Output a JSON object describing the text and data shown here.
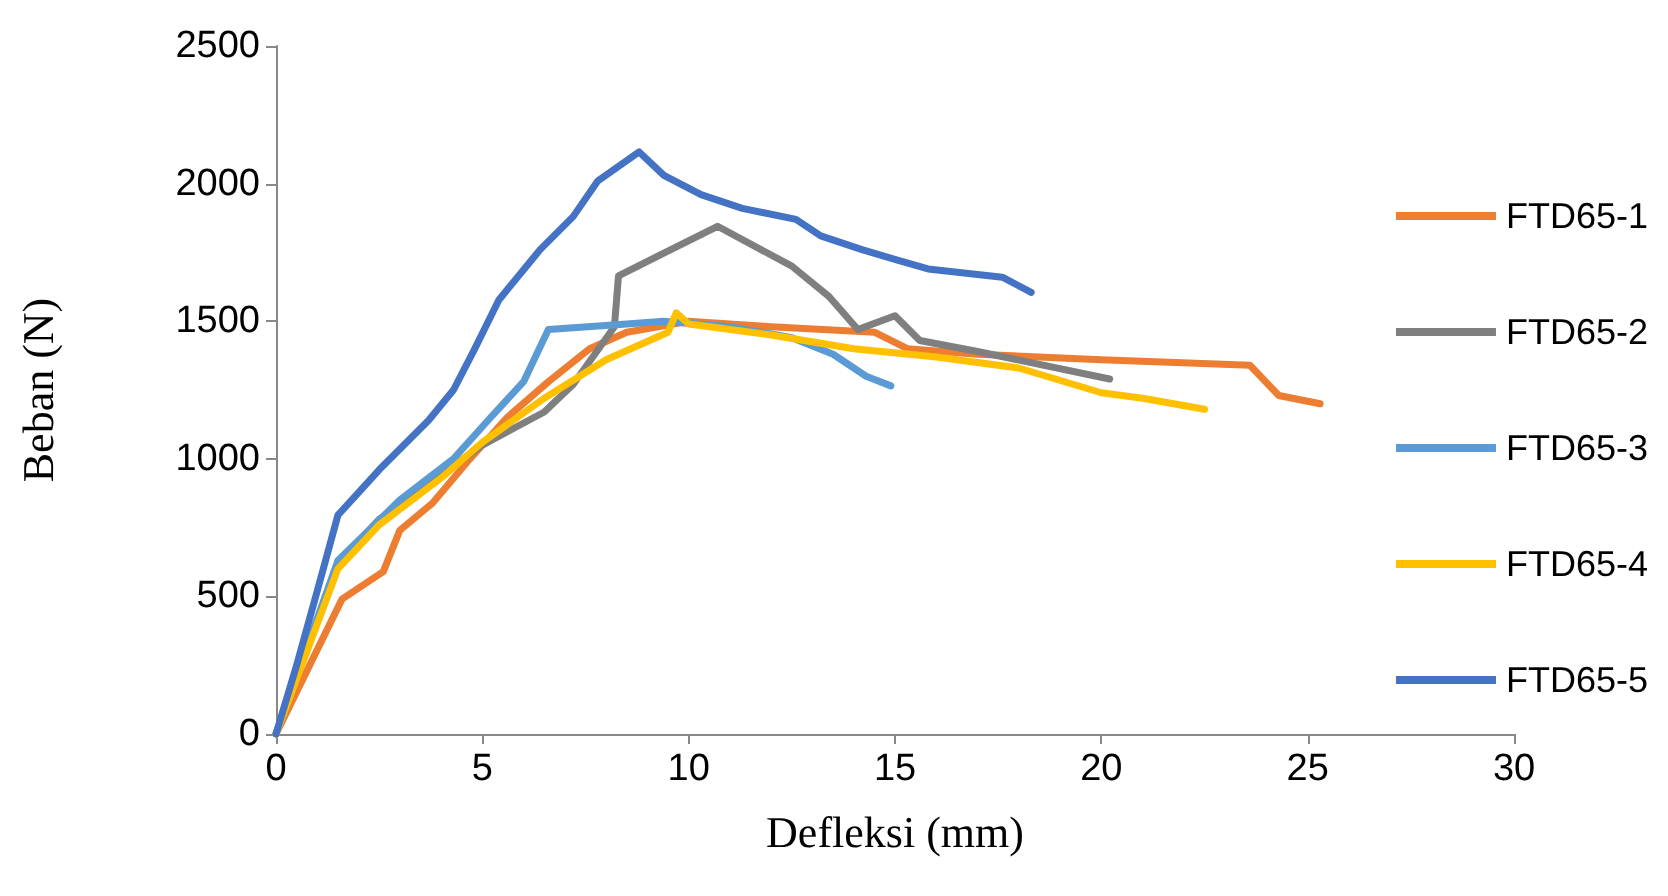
{
  "chart_data": {
    "type": "line",
    "xlabel": "Defleksi (mm)",
    "ylabel": "Beban (N)",
    "xlim": [
      0,
      30
    ],
    "xticks": [
      0,
      5,
      10,
      15,
      20,
      25,
      30
    ],
    "ylim": [
      0,
      2500
    ],
    "yticks": [
      0,
      500,
      1000,
      1500,
      2000,
      2500
    ],
    "grid": false,
    "legend": "right",
    "marker": "none",
    "line_style": "solid",
    "series": [
      {
        "name": "FTD65-1",
        "color": "#ed7d31",
        "x": [
          0,
          1.6,
          2.6,
          3,
          3.8,
          4.7,
          5.6,
          6.6,
          7.6,
          8.5,
          10,
          12,
          14.5,
          15.3,
          17,
          20,
          23.6,
          24.3,
          25.3
        ],
        "values": [
          0,
          490,
          590,
          740,
          840,
          1000,
          1150,
          1280,
          1400,
          1460,
          1500,
          1480,
          1460,
          1400,
          1380,
          1360,
          1340,
          1230,
          1200
        ]
      },
      {
        "name": "FTD65-2",
        "color": "#7f7f7f",
        "x": [
          0,
          1.5,
          2.5,
          5,
          6.5,
          7.2,
          8.2,
          8.3,
          10.7,
          12.5,
          13.4,
          14.1,
          15,
          15.6,
          17,
          20.2
        ],
        "values": [
          0,
          620,
          780,
          1050,
          1170,
          1270,
          1480,
          1665,
          1845,
          1700,
          1590,
          1470,
          1520,
          1430,
          1390,
          1290
        ]
      },
      {
        "name": "FTD65-3",
        "color": "#5b9bd5",
        "x": [
          0,
          1.5,
          3,
          4.3,
          5.2,
          6,
          6.6,
          8.5,
          9.4,
          11,
          12.5,
          13.5,
          14.3,
          14.9
        ],
        "values": [
          0,
          630,
          850,
          1000,
          1150,
          1280,
          1470,
          1490,
          1500,
          1480,
          1440,
          1380,
          1300,
          1265
        ]
      },
      {
        "name": "FTD65-4",
        "color": "#ffc000",
        "x": [
          0,
          1.5,
          2.5,
          4,
          5,
          6.5,
          8,
          9.5,
          9.7,
          10,
          12,
          14,
          16,
          18,
          20,
          21,
          22.5
        ],
        "values": [
          0,
          600,
          760,
          930,
          1060,
          1220,
          1360,
          1460,
          1530,
          1490,
          1450,
          1400,
          1370,
          1330,
          1240,
          1220,
          1180
        ]
      },
      {
        "name": "FTD65-5",
        "color": "#4472c4",
        "x": [
          0,
          0.5,
          1,
          1.5,
          2.5,
          3.7,
          4.3,
          4.8,
          5.4,
          6.4,
          7.2,
          7.8,
          8.8,
          9.4,
          10.3,
          11.3,
          12.6,
          13.2,
          14.2,
          15.1,
          15.8,
          17.6,
          18.3
        ],
        "values": [
          0,
          250,
          520,
          795,
          960,
          1140,
          1250,
          1395,
          1577,
          1760,
          1880,
          2010,
          2115,
          2030,
          1960,
          1910,
          1870,
          1810,
          1760,
          1720,
          1690,
          1660,
          1605
        ]
      }
    ]
  }
}
